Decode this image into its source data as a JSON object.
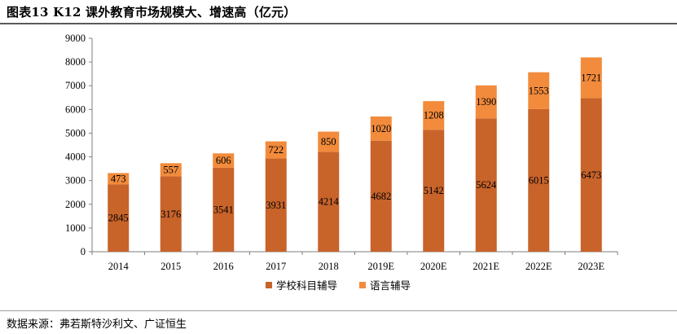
{
  "header": {
    "title": "图表13 K12 课外教育市场规模大、增速高（亿元）"
  },
  "footer": {
    "source": "数据来源：弗若斯特沙利文、广证恒生"
  },
  "chart_data": {
    "type": "bar",
    "stacked": true,
    "title": "图表13 K12 课外教育市场规模大、增速高（亿元）",
    "xlabel": "",
    "ylabel": "",
    "ylim": [
      0,
      9000
    ],
    "yticks": [
      0,
      1000,
      2000,
      3000,
      4000,
      5000,
      6000,
      7000,
      8000,
      9000
    ],
    "categories": [
      "2014",
      "2015",
      "2016",
      "2017",
      "2018",
      "2019E",
      "2020E",
      "2021E",
      "2022E",
      "2023E"
    ],
    "series": [
      {
        "name": "学校科目辅导",
        "color": "#C8632A",
        "values": [
          2845,
          3176,
          3541,
          3931,
          4214,
          4682,
          5142,
          5624,
          6015,
          6473
        ]
      },
      {
        "name": "语言辅导",
        "color": "#F28B3C",
        "values": [
          473,
          557,
          606,
          722,
          850,
          1020,
          1208,
          1390,
          1553,
          1721
        ]
      }
    ],
    "legend_position": "bottom-center",
    "grid": false
  }
}
